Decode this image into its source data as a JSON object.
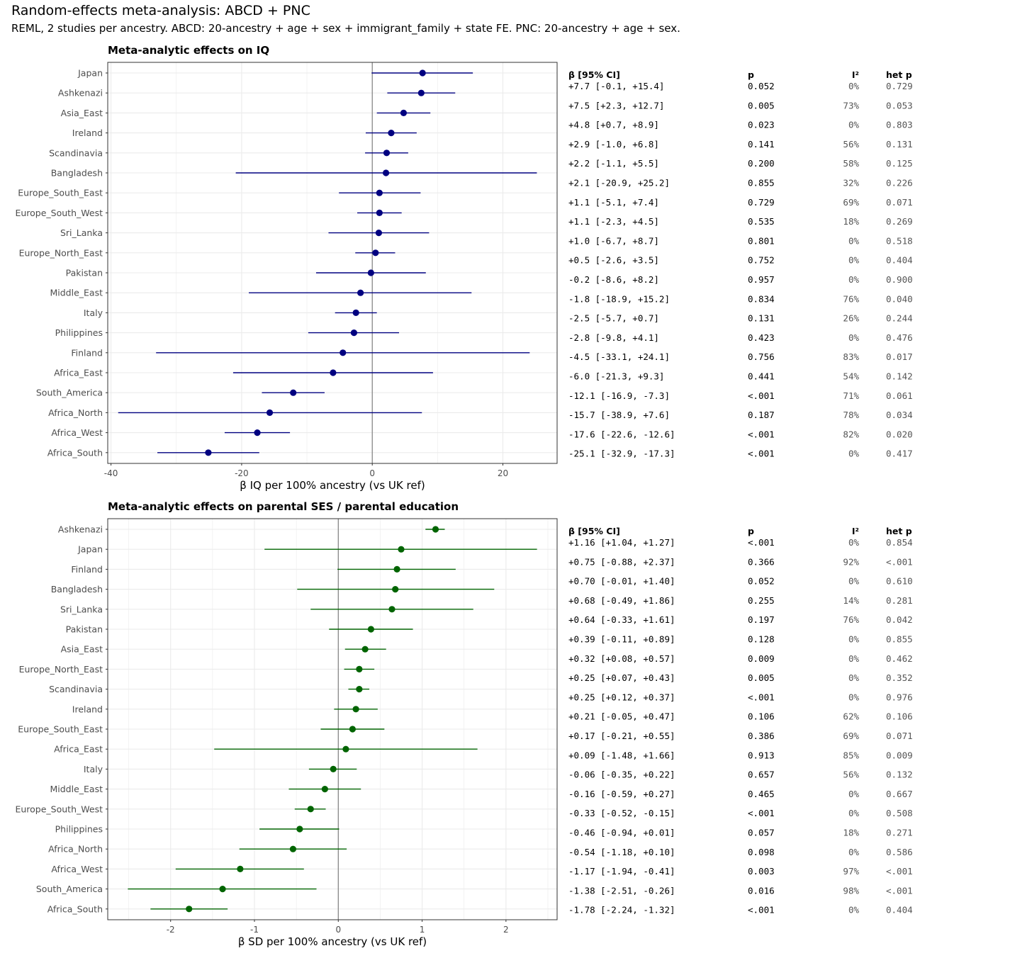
{
  "figure": {
    "title": "Random-effects meta-analysis: ABCD + PNC",
    "subtitle": "REML, 2 studies per ancestry. ABCD: 20-ancestry + age + sex + immigrant_family + state FE.   PNC: 20-ancestry + age + sex."
  },
  "colors": {
    "iq": "#000080",
    "ses": "#006400",
    "zero_line": "#7f7f7f",
    "grid": "#ebebeb",
    "panel_border": "#333333"
  },
  "table_headers": {
    "beta": "β [95% CI]",
    "p": "p",
    "i2": "I²",
    "hetp": "het p"
  },
  "chart_data": [
    {
      "type": "forest",
      "title": "Meta-analytic effects on IQ",
      "xlabel": "β IQ per 100% ancestry (vs UK ref)",
      "xlim": [
        -40.5,
        28.3
      ],
      "xticks": [
        -40,
        -20,
        0,
        20
      ],
      "xtick_labels": [
        "-40",
        "-20",
        "0",
        "20"
      ],
      "grid": true,
      "reference_line": 0,
      "rows": [
        {
          "label": "Japan",
          "beta": 7.7,
          "lo": -0.1,
          "hi": 15.4,
          "ci_text": "+7.7 [-0.1, +15.4]",
          "p": "0.052",
          "i2": "0%",
          "hetp": "0.729"
        },
        {
          "label": "Ashkenazi",
          "beta": 7.5,
          "lo": 2.3,
          "hi": 12.7,
          "ci_text": "+7.5 [+2.3, +12.7]",
          "p": "0.005",
          "i2": "73%",
          "hetp": "0.053"
        },
        {
          "label": "Asia_East",
          "beta": 4.8,
          "lo": 0.7,
          "hi": 8.9,
          "ci_text": "+4.8 [+0.7, +8.9]",
          "p": "0.023",
          "i2": "0%",
          "hetp": "0.803"
        },
        {
          "label": "Ireland",
          "beta": 2.9,
          "lo": -1.0,
          "hi": 6.8,
          "ci_text": "+2.9 [-1.0, +6.8]",
          "p": "0.141",
          "i2": "56%",
          "hetp": "0.131"
        },
        {
          "label": "Scandinavia",
          "beta": 2.2,
          "lo": -1.1,
          "hi": 5.5,
          "ci_text": "+2.2 [-1.1, +5.5]",
          "p": "0.200",
          "i2": "58%",
          "hetp": "0.125"
        },
        {
          "label": "Bangladesh",
          "beta": 2.1,
          "lo": -20.9,
          "hi": 25.2,
          "ci_text": "+2.1 [-20.9, +25.2]",
          "p": "0.855",
          "i2": "32%",
          "hetp": "0.226"
        },
        {
          "label": "Europe_South_East",
          "beta": 1.1,
          "lo": -5.1,
          "hi": 7.4,
          "ci_text": "+1.1 [-5.1, +7.4]",
          "p": "0.729",
          "i2": "69%",
          "hetp": "0.071"
        },
        {
          "label": "Europe_South_West",
          "beta": 1.1,
          "lo": -2.3,
          "hi": 4.5,
          "ci_text": "+1.1 [-2.3, +4.5]",
          "p": "0.535",
          "i2": "18%",
          "hetp": "0.269"
        },
        {
          "label": "Sri_Lanka",
          "beta": 1.0,
          "lo": -6.7,
          "hi": 8.7,
          "ci_text": "+1.0 [-6.7, +8.7]",
          "p": "0.801",
          "i2": "0%",
          "hetp": "0.518"
        },
        {
          "label": "Europe_North_East",
          "beta": 0.5,
          "lo": -2.6,
          "hi": 3.5,
          "ci_text": "+0.5 [-2.6, +3.5]",
          "p": "0.752",
          "i2": "0%",
          "hetp": "0.404"
        },
        {
          "label": "Pakistan",
          "beta": -0.2,
          "lo": -8.6,
          "hi": 8.2,
          "ci_text": "-0.2 [-8.6, +8.2]",
          "p": "0.957",
          "i2": "0%",
          "hetp": "0.900"
        },
        {
          "label": "Middle_East",
          "beta": -1.8,
          "lo": -18.9,
          "hi": 15.2,
          "ci_text": "-1.8 [-18.9, +15.2]",
          "p": "0.834",
          "i2": "76%",
          "hetp": "0.040"
        },
        {
          "label": "Italy",
          "beta": -2.5,
          "lo": -5.7,
          "hi": 0.7,
          "ci_text": "-2.5 [-5.7, +0.7]",
          "p": "0.131",
          "i2": "26%",
          "hetp": "0.244"
        },
        {
          "label": "Philippines",
          "beta": -2.8,
          "lo": -9.8,
          "hi": 4.1,
          "ci_text": "-2.8 [-9.8, +4.1]",
          "p": "0.423",
          "i2": "0%",
          "hetp": "0.476"
        },
        {
          "label": "Finland",
          "beta": -4.5,
          "lo": -33.1,
          "hi": 24.1,
          "ci_text": "-4.5 [-33.1, +24.1]",
          "p": "0.756",
          "i2": "83%",
          "hetp": "0.017"
        },
        {
          "label": "Africa_East",
          "beta": -6.0,
          "lo": -21.3,
          "hi": 9.3,
          "ci_text": "-6.0 [-21.3, +9.3]",
          "p": "0.441",
          "i2": "54%",
          "hetp": "0.142"
        },
        {
          "label": "South_America",
          "beta": -12.1,
          "lo": -16.9,
          "hi": -7.3,
          "ci_text": "-12.1 [-16.9, -7.3]",
          "p": "<.001",
          "i2": "71%",
          "hetp": "0.061"
        },
        {
          "label": "Africa_North",
          "beta": -15.7,
          "lo": -38.9,
          "hi": 7.6,
          "ci_text": "-15.7 [-38.9, +7.6]",
          "p": "0.187",
          "i2": "78%",
          "hetp": "0.034"
        },
        {
          "label": "Africa_West",
          "beta": -17.6,
          "lo": -22.6,
          "hi": -12.6,
          "ci_text": "-17.6 [-22.6, -12.6]",
          "p": "<.001",
          "i2": "82%",
          "hetp": "0.020"
        },
        {
          "label": "Africa_South",
          "beta": -25.1,
          "lo": -32.9,
          "hi": -17.3,
          "ci_text": "-25.1 [-32.9, -17.3]",
          "p": "<.001",
          "i2": "0%",
          "hetp": "0.417"
        }
      ]
    },
    {
      "type": "forest",
      "title": "Meta-analytic effects on parental SES / parental education",
      "xlabel": "β SD per 100% ancestry (vs UK ref)",
      "xlim": [
        -2.75,
        2.61
      ],
      "xticks": [
        -2,
        -1,
        0,
        1,
        2
      ],
      "xtick_labels": [
        "-2",
        "-1",
        "0",
        "1",
        "2"
      ],
      "grid": true,
      "reference_line": 0,
      "rows": [
        {
          "label": "Ashkenazi",
          "beta": 1.16,
          "lo": 1.04,
          "hi": 1.27,
          "ci_text": "+1.16 [+1.04, +1.27]",
          "p": "<.001",
          "i2": "0%",
          "hetp": "0.854"
        },
        {
          "label": "Japan",
          "beta": 0.75,
          "lo": -0.88,
          "hi": 2.37,
          "ci_text": "+0.75 [-0.88, +2.37]",
          "p": "0.366",
          "i2": "92%",
          "hetp": "<.001"
        },
        {
          "label": "Finland",
          "beta": 0.7,
          "lo": -0.01,
          "hi": 1.4,
          "ci_text": "+0.70 [-0.01, +1.40]",
          "p": "0.052",
          "i2": "0%",
          "hetp": "0.610"
        },
        {
          "label": "Bangladesh",
          "beta": 0.68,
          "lo": -0.49,
          "hi": 1.86,
          "ci_text": "+0.68 [-0.49, +1.86]",
          "p": "0.255",
          "i2": "14%",
          "hetp": "0.281"
        },
        {
          "label": "Sri_Lanka",
          "beta": 0.64,
          "lo": -0.33,
          "hi": 1.61,
          "ci_text": "+0.64 [-0.33, +1.61]",
          "p": "0.197",
          "i2": "76%",
          "hetp": "0.042"
        },
        {
          "label": "Pakistan",
          "beta": 0.39,
          "lo": -0.11,
          "hi": 0.89,
          "ci_text": "+0.39 [-0.11, +0.89]",
          "p": "0.128",
          "i2": "0%",
          "hetp": "0.855"
        },
        {
          "label": "Asia_East",
          "beta": 0.32,
          "lo": 0.08,
          "hi": 0.57,
          "ci_text": "+0.32 [+0.08, +0.57]",
          "p": "0.009",
          "i2": "0%",
          "hetp": "0.462"
        },
        {
          "label": "Europe_North_East",
          "beta": 0.25,
          "lo": 0.07,
          "hi": 0.43,
          "ci_text": "+0.25 [+0.07, +0.43]",
          "p": "0.005",
          "i2": "0%",
          "hetp": "0.352"
        },
        {
          "label": "Scandinavia",
          "beta": 0.25,
          "lo": 0.12,
          "hi": 0.37,
          "ci_text": "+0.25 [+0.12, +0.37]",
          "p": "<.001",
          "i2": "0%",
          "hetp": "0.976"
        },
        {
          "label": "Ireland",
          "beta": 0.21,
          "lo": -0.05,
          "hi": 0.47,
          "ci_text": "+0.21 [-0.05, +0.47]",
          "p": "0.106",
          "i2": "62%",
          "hetp": "0.106"
        },
        {
          "label": "Europe_South_East",
          "beta": 0.17,
          "lo": -0.21,
          "hi": 0.55,
          "ci_text": "+0.17 [-0.21, +0.55]",
          "p": "0.386",
          "i2": "69%",
          "hetp": "0.071"
        },
        {
          "label": "Africa_East",
          "beta": 0.09,
          "lo": -1.48,
          "hi": 1.66,
          "ci_text": "+0.09 [-1.48, +1.66]",
          "p": "0.913",
          "i2": "85%",
          "hetp": "0.009"
        },
        {
          "label": "Italy",
          "beta": -0.06,
          "lo": -0.35,
          "hi": 0.22,
          "ci_text": "-0.06 [-0.35, +0.22]",
          "p": "0.657",
          "i2": "56%",
          "hetp": "0.132"
        },
        {
          "label": "Middle_East",
          "beta": -0.16,
          "lo": -0.59,
          "hi": 0.27,
          "ci_text": "-0.16 [-0.59, +0.27]",
          "p": "0.465",
          "i2": "0%",
          "hetp": "0.667"
        },
        {
          "label": "Europe_South_West",
          "beta": -0.33,
          "lo": -0.52,
          "hi": -0.15,
          "ci_text": "-0.33 [-0.52, -0.15]",
          "p": "<.001",
          "i2": "0%",
          "hetp": "0.508"
        },
        {
          "label": "Philippines",
          "beta": -0.46,
          "lo": -0.94,
          "hi": 0.01,
          "ci_text": "-0.46 [-0.94, +0.01]",
          "p": "0.057",
          "i2": "18%",
          "hetp": "0.271"
        },
        {
          "label": "Africa_North",
          "beta": -0.54,
          "lo": -1.18,
          "hi": 0.1,
          "ci_text": "-0.54 [-1.18, +0.10]",
          "p": "0.098",
          "i2": "0%",
          "hetp": "0.586"
        },
        {
          "label": "Africa_West",
          "beta": -1.17,
          "lo": -1.94,
          "hi": -0.41,
          "ci_text": "-1.17 [-1.94, -0.41]",
          "p": "0.003",
          "i2": "97%",
          "hetp": "<.001"
        },
        {
          "label": "South_America",
          "beta": -1.38,
          "lo": -2.51,
          "hi": -0.26,
          "ci_text": "-1.38 [-2.51, -0.26]",
          "p": "0.016",
          "i2": "98%",
          "hetp": "<.001"
        },
        {
          "label": "Africa_South",
          "beta": -1.78,
          "lo": -2.24,
          "hi": -1.32,
          "ci_text": "-1.78 [-2.24, -1.32]",
          "p": "<.001",
          "i2": "0%",
          "hetp": "0.404"
        }
      ]
    }
  ]
}
